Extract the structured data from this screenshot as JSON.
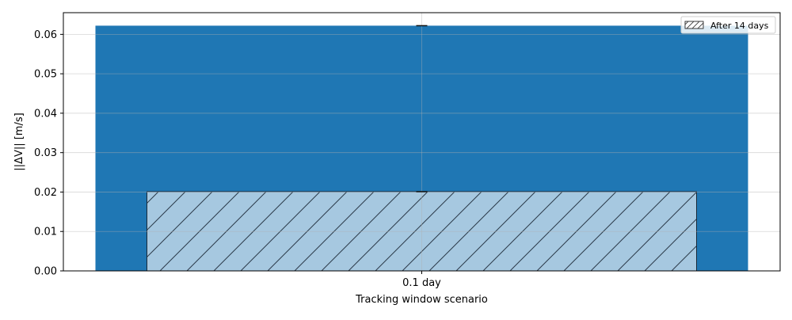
{
  "chart_data": {
    "type": "bar",
    "categories": [
      "0.1 day"
    ],
    "series": [
      {
        "values": [
          0.0622
        ],
        "error_upper": [
          0.0622
        ],
        "error_lower": [
          0.0622
        ],
        "color": "#1f77b4"
      },
      {
        "name": "After 14 days",
        "values": [
          0.0201
        ],
        "error_upper": [
          0.0201
        ],
        "error_lower": [
          0.0201
        ],
        "color": "#a6c8e0",
        "hatch": "diagonal"
      }
    ],
    "xlabel": "Tracking window scenario",
    "ylabel": "||ΔV|| [m/s]",
    "ylim": [
      0,
      0.0655
    ],
    "yticks": [
      "0.00",
      "0.01",
      "0.02",
      "0.03",
      "0.04",
      "0.05",
      "0.06"
    ],
    "grid": true,
    "legend_position": "top-right"
  }
}
